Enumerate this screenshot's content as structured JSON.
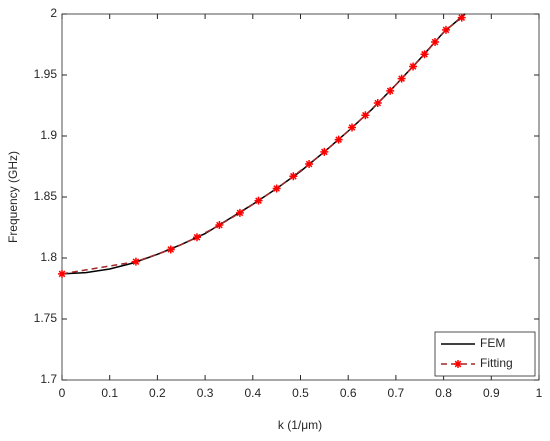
{
  "chart_data": {
    "type": "line",
    "x_label": "k (1/μm)",
    "y_label": "Frequency (GHz)",
    "xlim": [
      0,
      1
    ],
    "xticks": [
      0,
      0.1,
      0.2,
      0.3,
      0.4,
      0.5,
      0.6,
      0.7,
      0.8,
      0.9,
      1
    ],
    "ylim": [
      1.7,
      2
    ],
    "yticks": [
      1.7,
      1.75,
      1.8,
      1.85,
      1.9,
      1.95,
      2
    ],
    "grid": false,
    "legend": "lower right",
    "series": [
      {
        "name": "FEM",
        "color": "#000000",
        "linestyle": "solid",
        "x": [
          0,
          0.05,
          0.1,
          0.15,
          0.2,
          0.25,
          0.3,
          0.35,
          0.4,
          0.45,
          0.5,
          0.55,
          0.6,
          0.65,
          0.7,
          0.75,
          0.8,
          0.845
        ],
        "values": [
          1.787,
          1.788,
          1.791,
          1.796,
          1.803,
          1.811,
          1.82,
          1.832,
          1.844,
          1.857,
          1.871,
          1.887,
          1.904,
          1.922,
          1.942,
          1.963,
          1.985,
          2.0
        ]
      },
      {
        "name": "Fitting",
        "color": "#a0282a",
        "marker_color": "#ff0000",
        "linestyle": "dashed",
        "marker": "asterisk",
        "x": [
          0,
          0.155,
          0.228,
          0.283,
          0.33,
          0.373,
          0.412,
          0.45,
          0.485,
          0.518,
          0.55,
          0.58,
          0.608,
          0.636,
          0.662,
          0.688,
          0.712,
          0.736,
          0.76,
          0.782,
          0.805,
          0.838
        ],
        "values": [
          1.787,
          1.797,
          1.807,
          1.817,
          1.827,
          1.837,
          1.847,
          1.857,
          1.867,
          1.877,
          1.887,
          1.897,
          1.907,
          1.917,
          1.927,
          1.937,
          1.947,
          1.957,
          1.967,
          1.977,
          1.987,
          1.997
        ]
      }
    ]
  }
}
